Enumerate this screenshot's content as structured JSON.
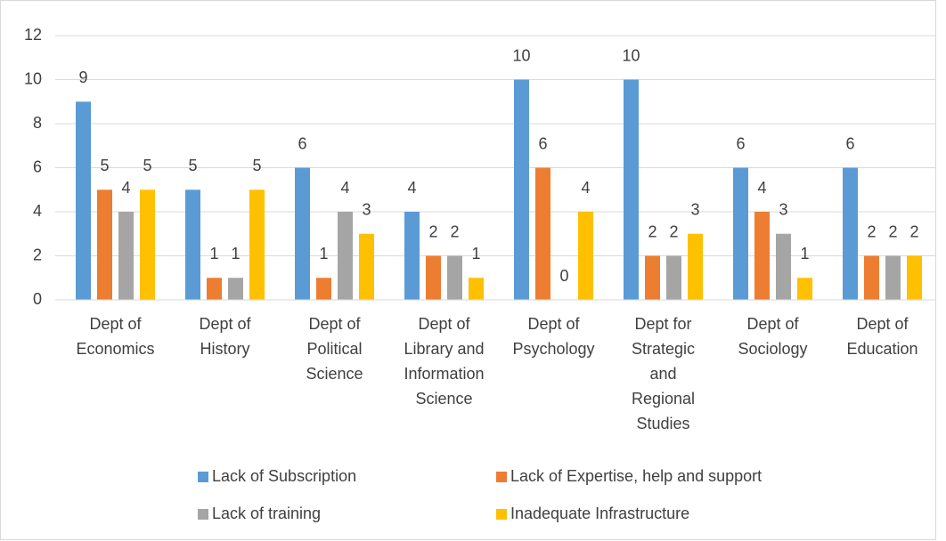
{
  "chart_data": {
    "type": "bar",
    "categories": [
      "Dept of Economics",
      "Dept of History",
      "Dept of Political Science",
      "Dept of Library and Information Science",
      "Dept of Psychology",
      "Dept for Strategic and Regional Studies",
      "Dept of Sociology",
      "Dept of Education"
    ],
    "series": [
      {
        "name": "Lack of Subscription",
        "color": "#5b9bd5",
        "values": [
          9,
          5,
          6,
          4,
          10,
          10,
          6,
          6
        ]
      },
      {
        "name": "Lack of Expertise, help and support",
        "color": "#ed7d31",
        "values": [
          5,
          1,
          1,
          2,
          6,
          2,
          4,
          2
        ]
      },
      {
        "name": "Lack of training",
        "color": "#a5a5a5",
        "values": [
          4,
          1,
          4,
          2,
          0,
          2,
          3,
          2
        ]
      },
      {
        "name": "Inadequate Infrastructure",
        "color": "#ffc000",
        "values": [
          5,
          5,
          3,
          1,
          4,
          3,
          1,
          2
        ]
      }
    ],
    "ylim": [
      0,
      12
    ],
    "yticks": [
      0,
      2,
      4,
      6,
      8,
      10,
      12
    ],
    "grid": true,
    "legend": "bottom",
    "data_labels": true
  }
}
